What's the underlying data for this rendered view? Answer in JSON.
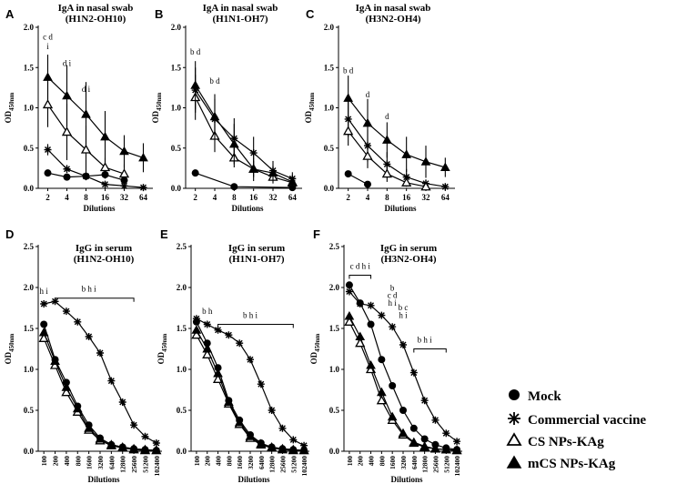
{
  "panel_letters": [
    "A",
    "B",
    "C",
    "D",
    "E",
    "F"
  ],
  "legend": {
    "mock": "Mock",
    "commercial": "Commercial vaccine",
    "cs": "CS NPs-KAg",
    "mcs": "mCS NPs-KAg"
  },
  "ylabel_main": "OD",
  "ylabel_sub_iga": "450nm",
  "ylabel_sub_igg": "450nm",
  "chart_data": [
    {
      "type": "line",
      "panel": "A",
      "title": "IgA in nasal swab",
      "subtitle": "(H1N2-OH10)",
      "xlabel": "Dilutions",
      "ylabel": "OD450nm",
      "categories": [
        "2",
        "4",
        "8",
        "16",
        "32",
        "64"
      ],
      "ylim": [
        0,
        2.0
      ],
      "yticks": [
        "0.0",
        "0.5",
        "1.0",
        "1.5",
        "2.0"
      ],
      "series": [
        {
          "name": "Mock",
          "values": [
            0.19,
            0.14,
            0.15,
            0.17,
            0.1,
            null
          ],
          "err": [
            0.03,
            0.03,
            0.03,
            0.05,
            0.03,
            null
          ]
        },
        {
          "name": "Commercial vaccine",
          "values": [
            0.48,
            0.24,
            0.15,
            0.05,
            0.03,
            0.01
          ],
          "err": [
            0.07,
            0.05,
            0.05,
            0.03,
            0.02,
            0.01
          ]
        },
        {
          "name": "CS NPs-KAg",
          "values": [
            1.04,
            0.7,
            0.48,
            0.26,
            0.18,
            null
          ],
          "err": [
            0.28,
            0.35,
            0.3,
            0.12,
            0.12,
            null
          ]
        },
        {
          "name": "mCS NPs-KAg",
          "values": [
            1.38,
            1.15,
            0.92,
            0.64,
            0.46,
            0.38
          ],
          "err": [
            0.28,
            0.38,
            0.4,
            0.32,
            0.2,
            0.18
          ]
        }
      ],
      "annotations": [
        {
          "text": "c d",
          "x": "2",
          "y": 1.85
        },
        {
          "text": "i",
          "x": "2",
          "y": 1.73
        },
        {
          "text": "d i",
          "x": "4",
          "y": 1.52
        },
        {
          "text": "d i",
          "x": "8",
          "y": 1.2
        }
      ]
    },
    {
      "type": "line",
      "panel": "B",
      "title": "IgA in nasal swab",
      "subtitle": "(H1N1-OH7)",
      "xlabel": "Dilutions",
      "ylabel": "OD450nm",
      "categories": [
        "2",
        "4",
        "8",
        "16",
        "32",
        "64"
      ],
      "ylim": [
        0,
        2.0
      ],
      "yticks": [
        "0.0",
        "0.5",
        "1.0",
        "1.5",
        "2.0"
      ],
      "series": [
        {
          "name": "Mock",
          "values": [
            0.19,
            null,
            0.02,
            null,
            null,
            0.01
          ],
          "err": [
            0.04,
            null,
            0.01,
            null,
            null,
            0.01
          ]
        },
        {
          "name": "Commercial vaccine",
          "values": [
            1.22,
            0.86,
            0.62,
            0.44,
            0.22,
            0.12
          ],
          "err": [
            0.28,
            0.25,
            0.25,
            0.2,
            0.12,
            0.08
          ]
        },
        {
          "name": "CS NPs-KAg",
          "values": [
            1.13,
            0.65,
            0.38,
            0.24,
            0.14,
            0.07
          ],
          "err": [
            0.28,
            0.2,
            0.12,
            0.1,
            0.08,
            0.05
          ]
        },
        {
          "name": "mCS NPs-KAg",
          "values": [
            1.28,
            0.89,
            0.55,
            0.24,
            0.19,
            0.08
          ],
          "err": [
            0.3,
            0.28,
            0.25,
            0.15,
            0.1,
            0.06
          ]
        }
      ],
      "annotations": [
        {
          "text": "b d",
          "x": "2",
          "y": 1.66
        },
        {
          "text": "b d",
          "x": "4",
          "y": 1.3
        }
      ]
    },
    {
      "type": "line",
      "panel": "C",
      "title": "IgA in nasal swab",
      "subtitle": "(H3N2-OH4)",
      "xlabel": "Dilutions",
      "ylabel": "OD450nm",
      "categories": [
        "2",
        "4",
        "8",
        "16",
        "32",
        "64"
      ],
      "ylim": [
        0,
        2.0
      ],
      "yticks": [
        "0.0",
        "0.5",
        "1.0",
        "1.5",
        "2.0"
      ],
      "series": [
        {
          "name": "Mock",
          "values": [
            0.18,
            0.05,
            null,
            null,
            null,
            null
          ],
          "err": [
            0.03,
            0.02,
            null,
            null,
            null,
            null
          ]
        },
        {
          "name": "Commercial vaccine",
          "values": [
            0.86,
            0.53,
            0.3,
            0.14,
            0.06,
            0.02
          ],
          "err": [
            0.22,
            0.2,
            0.15,
            0.1,
            0.05,
            0.02
          ]
        },
        {
          "name": "CS NPs-KAg",
          "values": [
            0.71,
            0.4,
            0.18,
            0.07,
            0.02,
            null
          ],
          "err": [
            0.18,
            0.15,
            0.1,
            0.05,
            0.02,
            null
          ]
        },
        {
          "name": "mCS NPs-KAg",
          "values": [
            1.12,
            0.81,
            0.6,
            0.42,
            0.33,
            0.26
          ],
          "err": [
            0.28,
            0.3,
            0.22,
            0.22,
            0.2,
            0.12
          ]
        }
      ],
      "annotations": [
        {
          "text": "b d",
          "x": "2",
          "y": 1.43
        },
        {
          "text": "d",
          "x": "4",
          "y": 1.13
        },
        {
          "text": "d",
          "x": "8",
          "y": 0.86
        }
      ]
    },
    {
      "type": "line",
      "panel": "D",
      "title": "IgG in serum",
      "subtitle": "(H1N2-OH10)",
      "xlabel": "Dilutions",
      "ylabel": "OD450nm",
      "categories": [
        "100",
        "200",
        "400",
        "800",
        "1600",
        "3200",
        "6400",
        "12800",
        "25600",
        "51200",
        "102400"
      ],
      "ylim": [
        0,
        2.5
      ],
      "yticks": [
        "0.0",
        "0.5",
        "1.0",
        "1.5",
        "2.0",
        "2.5"
      ],
      "series": [
        {
          "name": "Mock",
          "values": [
            1.55,
            1.12,
            0.84,
            0.55,
            0.32,
            0.16,
            0.08,
            0.05,
            0.03,
            0.02,
            0.01
          ]
        },
        {
          "name": "Commercial vaccine",
          "values": [
            1.8,
            1.83,
            1.71,
            1.58,
            1.4,
            1.2,
            0.86,
            0.6,
            0.32,
            0.18,
            0.1
          ]
        },
        {
          "name": "CS NPs-KAg",
          "values": [
            1.38,
            1.05,
            0.72,
            0.48,
            0.26,
            0.13,
            0.07,
            0.04,
            0.02,
            0.01,
            0.01
          ]
        },
        {
          "name": "mCS NPs-KAg",
          "values": [
            1.45,
            1.1,
            0.78,
            0.52,
            0.28,
            0.15,
            0.08,
            0.05,
            0.03,
            0.02,
            0.01
          ]
        }
      ],
      "annotations": [
        {
          "text": "h i",
          "x": "100",
          "y": 1.92
        },
        {
          "text": "b h i",
          "x": "1600",
          "y": 1.95
        }
      ],
      "bracket": {
        "from": "200",
        "to": "25600",
        "y": 1.87
      }
    },
    {
      "type": "line",
      "panel": "E",
      "title": "IgG in serum",
      "subtitle": "(H1N1-OH7)",
      "xlabel": "Dilutions",
      "ylabel": "OD450nm",
      "categories": [
        "100",
        "200",
        "400",
        "800",
        "1600",
        "3200",
        "6400",
        "12800",
        "25600",
        "51200",
        "102400"
      ],
      "ylim": [
        0,
        2.5
      ],
      "yticks": [
        "0.0",
        "0.5",
        "1.0",
        "1.5",
        "2.0",
        "2.5"
      ],
      "series": [
        {
          "name": "Mock",
          "values": [
            1.58,
            1.32,
            1.02,
            0.62,
            0.38,
            0.2,
            0.1,
            0.05,
            0.03,
            0.02,
            0.01
          ]
        },
        {
          "name": "Commercial vaccine",
          "values": [
            1.62,
            1.55,
            1.48,
            1.42,
            1.32,
            1.12,
            0.82,
            0.5,
            0.28,
            0.14,
            0.07
          ]
        },
        {
          "name": "CS NPs-KAg",
          "values": [
            1.42,
            1.18,
            0.88,
            0.58,
            0.33,
            0.16,
            0.08,
            0.04,
            0.02,
            0.01,
            0.01
          ]
        },
        {
          "name": "mCS NPs-KAg",
          "values": [
            1.48,
            1.25,
            0.95,
            0.6,
            0.35,
            0.18,
            0.09,
            0.05,
            0.03,
            0.02,
            0.01
          ]
        }
      ],
      "annotations": [
        {
          "text": "b h",
          "x": "200",
          "y": 1.68
        },
        {
          "text": "b h i",
          "x": "3200",
          "y": 1.63
        }
      ],
      "bracket": {
        "from": "400",
        "to": "51200",
        "y": 1.55
      }
    },
    {
      "type": "line",
      "panel": "F",
      "title": "IgG in serum",
      "subtitle": "(H3N2-OH4)",
      "xlabel": "Dilutions",
      "ylabel": "OD450nm",
      "categories": [
        "100",
        "200",
        "400",
        "800",
        "1600",
        "3200",
        "6400",
        "12800",
        "25600",
        "51200",
        "102400"
      ],
      "ylim": [
        0,
        2.5
      ],
      "yticks": [
        "0.0",
        "0.5",
        "1.0",
        "1.5",
        "2.0",
        "2.5"
      ],
      "series": [
        {
          "name": "Mock",
          "values": [
            2.03,
            1.81,
            1.55,
            1.12,
            0.8,
            0.5,
            0.28,
            0.15,
            0.08,
            0.04,
            0.02
          ]
        },
        {
          "name": "Commercial vaccine",
          "values": [
            1.95,
            1.8,
            1.78,
            1.66,
            1.52,
            1.3,
            0.96,
            0.62,
            0.38,
            0.22,
            0.12
          ]
        },
        {
          "name": "CS NPs-KAg",
          "values": [
            1.58,
            1.32,
            1.0,
            0.62,
            0.38,
            0.2,
            0.1,
            0.05,
            0.03,
            0.02,
            0.01
          ]
        },
        {
          "name": "mCS NPs-KAg",
          "values": [
            1.65,
            1.4,
            1.05,
            0.72,
            0.42,
            0.22,
            0.11,
            0.06,
            0.03,
            0.02,
            0.01
          ]
        }
      ],
      "annotations": [
        {
          "text": "c d h i",
          "x": "200",
          "y": 2.23
        },
        {
          "text": "b",
          "x": "1600",
          "y": 1.96
        },
        {
          "text": "c d",
          "x": "1600",
          "y": 1.87
        },
        {
          "text": "h i",
          "x": "1600",
          "y": 1.78
        },
        {
          "text": "b c",
          "x": "3200",
          "y": 1.72
        },
        {
          "text": "h i",
          "x": "3200",
          "y": 1.63
        },
        {
          "text": "b h i",
          "x": "12800",
          "y": 1.33
        }
      ],
      "bracket_top": {
        "from": "100",
        "to": "400",
        "y": 2.15
      },
      "bracket": {
        "from": "6400",
        "to": "51200",
        "y": 1.25
      }
    }
  ]
}
